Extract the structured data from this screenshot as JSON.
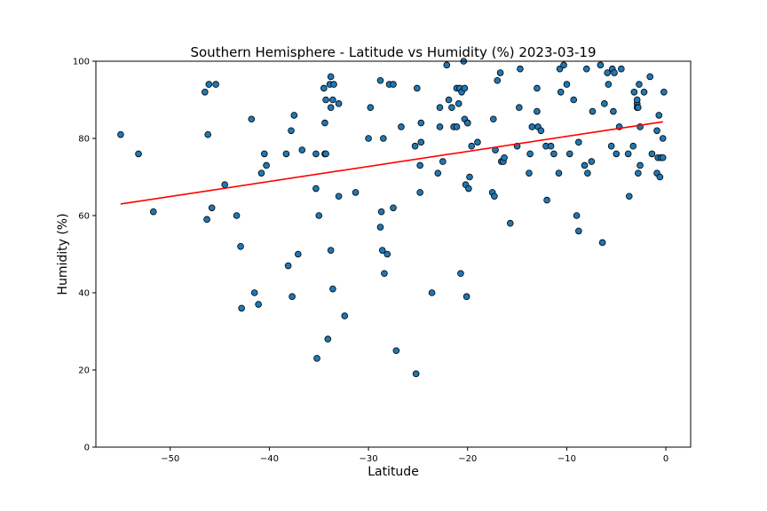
{
  "chart_data": {
    "type": "scatter",
    "title": "Southern Hemisphere - Latitude vs Humidity (%) 2023-03-19",
    "xlabel": "Latitude",
    "ylabel": "Humidity (%)",
    "xlim": [
      -57.5,
      2.5
    ],
    "ylim": [
      0,
      100
    ],
    "xticks": [
      -50,
      -40,
      -30,
      -20,
      -10,
      0
    ],
    "yticks": [
      0,
      20,
      40,
      60,
      80,
      100
    ],
    "xtick_labels": [
      "−50",
      "−40",
      "−30",
      "−20",
      "−10",
      "0"
    ],
    "ytick_labels": [
      "0",
      "20",
      "40",
      "60",
      "80",
      "100"
    ],
    "grid": false,
    "marker_color": "#1f77b4",
    "marker_edge_color": "#000000",
    "regression": {
      "x": [
        -55,
        -0.3
      ],
      "y": [
        63.0,
        84.3
      ],
      "color": "#ff0000"
    },
    "points": [
      [
        -55,
        81
      ],
      [
        -53.2,
        76
      ],
      [
        -51.7,
        61
      ],
      [
        -46.5,
        92
      ],
      [
        -46.1,
        94
      ],
      [
        -45.4,
        94
      ],
      [
        -46.2,
        81
      ],
      [
        -46.3,
        59
      ],
      [
        -45.8,
        62
      ],
      [
        -44.5,
        68
      ],
      [
        -43.3,
        60
      ],
      [
        -42.9,
        52
      ],
      [
        -42.8,
        36
      ],
      [
        -41.8,
        85
      ],
      [
        -41.5,
        40
      ],
      [
        -41.1,
        37
      ],
      [
        -40.8,
        71
      ],
      [
        -40.5,
        76
      ],
      [
        -40.3,
        73
      ],
      [
        -38.3,
        76
      ],
      [
        -38.1,
        47
      ],
      [
        -37.8,
        82
      ],
      [
        -37.7,
        39
      ],
      [
        -37.5,
        86
      ],
      [
        -37.1,
        50
      ],
      [
        -36.7,
        77
      ],
      [
        -35.3,
        67
      ],
      [
        -35.2,
        23
      ],
      [
        -35.3,
        76
      ],
      [
        -35.0,
        60
      ],
      [
        -34.5,
        93
      ],
      [
        -34.4,
        76
      ],
      [
        -34.4,
        84
      ],
      [
        -34.3,
        90
      ],
      [
        -34.3,
        76
      ],
      [
        -34.1,
        28
      ],
      [
        -33.9,
        94
      ],
      [
        -33.8,
        96
      ],
      [
        -33.8,
        88
      ],
      [
        -33.8,
        51
      ],
      [
        -33.6,
        90
      ],
      [
        -33.5,
        94
      ],
      [
        -33.6,
        41
      ],
      [
        -33.0,
        89
      ],
      [
        -33.0,
        65
      ],
      [
        -32.4,
        34
      ],
      [
        -31.3,
        66
      ],
      [
        -30.0,
        80
      ],
      [
        -29.8,
        88
      ],
      [
        -28.8,
        95
      ],
      [
        -28.8,
        57
      ],
      [
        -28.7,
        61
      ],
      [
        -28.6,
        51
      ],
      [
        -28.5,
        80
      ],
      [
        -28.4,
        45
      ],
      [
        -28.1,
        50
      ],
      [
        -27.9,
        94
      ],
      [
        -27.5,
        94
      ],
      [
        -27.5,
        62
      ],
      [
        -27.2,
        25
      ],
      [
        -26.7,
        83
      ],
      [
        -25.2,
        19
      ],
      [
        -25.3,
        78
      ],
      [
        -25.1,
        93
      ],
      [
        -24.8,
        66
      ],
      [
        -24.8,
        73
      ],
      [
        -24.7,
        79
      ],
      [
        -24.7,
        84
      ],
      [
        -23.6,
        40
      ],
      [
        -23.0,
        71
      ],
      [
        -22.8,
        83
      ],
      [
        -22.8,
        88
      ],
      [
        -22.5,
        74
      ],
      [
        -22.1,
        99
      ],
      [
        -21.9,
        90
      ],
      [
        -21.6,
        88
      ],
      [
        -21.4,
        83
      ],
      [
        -21.1,
        93
      ],
      [
        -21.1,
        83
      ],
      [
        -20.9,
        89
      ],
      [
        -20.8,
        93
      ],
      [
        -20.7,
        45
      ],
      [
        -20.6,
        92
      ],
      [
        -20.4,
        100
      ],
      [
        -20.3,
        85
      ],
      [
        -20.3,
        93
      ],
      [
        -20.2,
        68
      ],
      [
        -20.0,
        84
      ],
      [
        -20.0,
        84
      ],
      [
        -19.9,
        67
      ],
      [
        -19.8,
        70
      ],
      [
        -20.1,
        39
      ],
      [
        -19.6,
        78
      ],
      [
        -19.0,
        79
      ],
      [
        -17.5,
        66
      ],
      [
        -17.4,
        85
      ],
      [
        -17.3,
        65
      ],
      [
        -17.2,
        77
      ],
      [
        -17.0,
        95
      ],
      [
        -16.7,
        97
      ],
      [
        -16.6,
        74
      ],
      [
        -16.4,
        74
      ],
      [
        -16.3,
        75
      ],
      [
        -15.7,
        58
      ],
      [
        -15.0,
        78
      ],
      [
        -14.7,
        98
      ],
      [
        -14.8,
        88
      ],
      [
        -13.8,
        71
      ],
      [
        -13.7,
        76
      ],
      [
        -13.5,
        83
      ],
      [
        -13.0,
        93
      ],
      [
        -13.0,
        87
      ],
      [
        -12.9,
        83
      ],
      [
        -12.6,
        82
      ],
      [
        -12.1,
        78
      ],
      [
        -12.0,
        64
      ],
      [
        -11.6,
        78
      ],
      [
        -11.3,
        76
      ],
      [
        -10.8,
        71
      ],
      [
        -10.7,
        98
      ],
      [
        -10.6,
        92
      ],
      [
        -10.3,
        99
      ],
      [
        -10.0,
        94
      ],
      [
        -9.7,
        76
      ],
      [
        -9.3,
        90
      ],
      [
        -9.0,
        60
      ],
      [
        -8.8,
        79
      ],
      [
        -8.8,
        56
      ],
      [
        -8.2,
        73
      ],
      [
        -8.0,
        98
      ],
      [
        -7.9,
        71
      ],
      [
        -7.5,
        74
      ],
      [
        -7.4,
        87
      ],
      [
        -6.6,
        99
      ],
      [
        -6.4,
        53
      ],
      [
        -6.2,
        89
      ],
      [
        -5.9,
        97
      ],
      [
        -5.8,
        94
      ],
      [
        -5.4,
        98
      ],
      [
        -5.5,
        78
      ],
      [
        -5.3,
        87
      ],
      [
        -5.2,
        97
      ],
      [
        -5.0,
        76
      ],
      [
        -4.7,
        83
      ],
      [
        -4.5,
        98
      ],
      [
        -3.8,
        76
      ],
      [
        -3.7,
        65
      ],
      [
        -3.3,
        78
      ],
      [
        -3.2,
        92
      ],
      [
        -2.9,
        89
      ],
      [
        -2.9,
        90
      ],
      [
        -2.9,
        88
      ],
      [
        -2.8,
        88
      ],
      [
        -2.8,
        71
      ],
      [
        -2.7,
        94
      ],
      [
        -2.6,
        73
      ],
      [
        -2.6,
        83
      ],
      [
        -2.2,
        92
      ],
      [
        -1.6,
        96
      ],
      [
        -1.4,
        76
      ],
      [
        -0.9,
        71
      ],
      [
        -0.9,
        82
      ],
      [
        -0.8,
        75
      ],
      [
        -0.7,
        86
      ],
      [
        -0.6,
        70
      ],
      [
        -0.5,
        75
      ],
      [
        -0.3,
        75
      ],
      [
        -0.3,
        80
      ],
      [
        -0.2,
        92
      ]
    ]
  }
}
